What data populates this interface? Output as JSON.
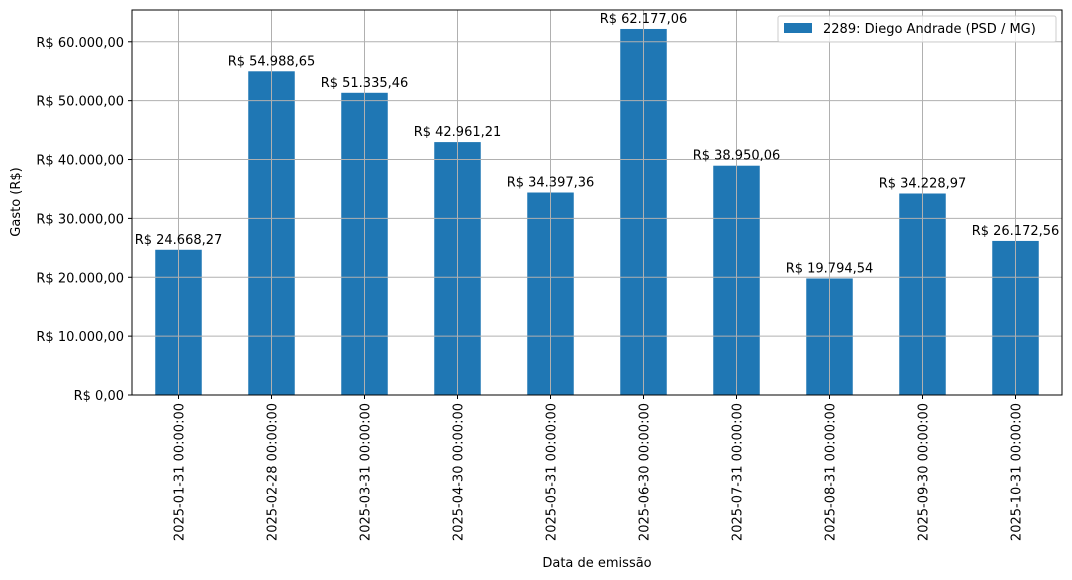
{
  "chart_data": {
    "type": "bar",
    "title": "",
    "xlabel": "Data de emissão",
    "ylabel": "Gasto (R$)",
    "ylim": [
      0,
      65400
    ],
    "grid": true,
    "legend_position": "upper right",
    "categories": [
      "2025-01-31 00:00:00",
      "2025-02-28 00:00:00",
      "2025-03-31 00:00:00",
      "2025-04-30 00:00:00",
      "2025-05-31 00:00:00",
      "2025-06-30 00:00:00",
      "2025-07-31 00:00:00",
      "2025-08-31 00:00:00",
      "2025-09-30 00:00:00",
      "2025-10-31 00:00:00"
    ],
    "series": [
      {
        "name": "2289: Diego Andrade (PSD / MG)",
        "color": "#1f77b4",
        "values": [
          24668.27,
          54988.65,
          51335.46,
          42961.21,
          34397.36,
          62177.06,
          38950.06,
          19794.54,
          34228.97,
          26172.56
        ],
        "labels": [
          "R$ 24.668,27",
          "R$ 54.988,65",
          "R$ 51.335,46",
          "R$ 42.961,21",
          "R$ 34.397,36",
          "R$ 62.177,06",
          "R$ 38.950,06",
          "R$ 19.794,54",
          "R$ 34.228,97",
          "R$ 26.172,56"
        ]
      }
    ],
    "yticks": [
      0,
      10000,
      20000,
      30000,
      40000,
      50000,
      60000
    ],
    "ytick_labels": [
      "R$ 0,00",
      "R$ 10.000,00",
      "R$ 20.000,00",
      "R$ 30.000,00",
      "R$ 40.000,00",
      "R$ 50.000,00",
      "R$ 60.000,00"
    ]
  },
  "colors": {
    "bar": "#1f77b4",
    "grid": "#b0b0b0",
    "axis": "#000000",
    "legend_border": "#cccccc"
  }
}
